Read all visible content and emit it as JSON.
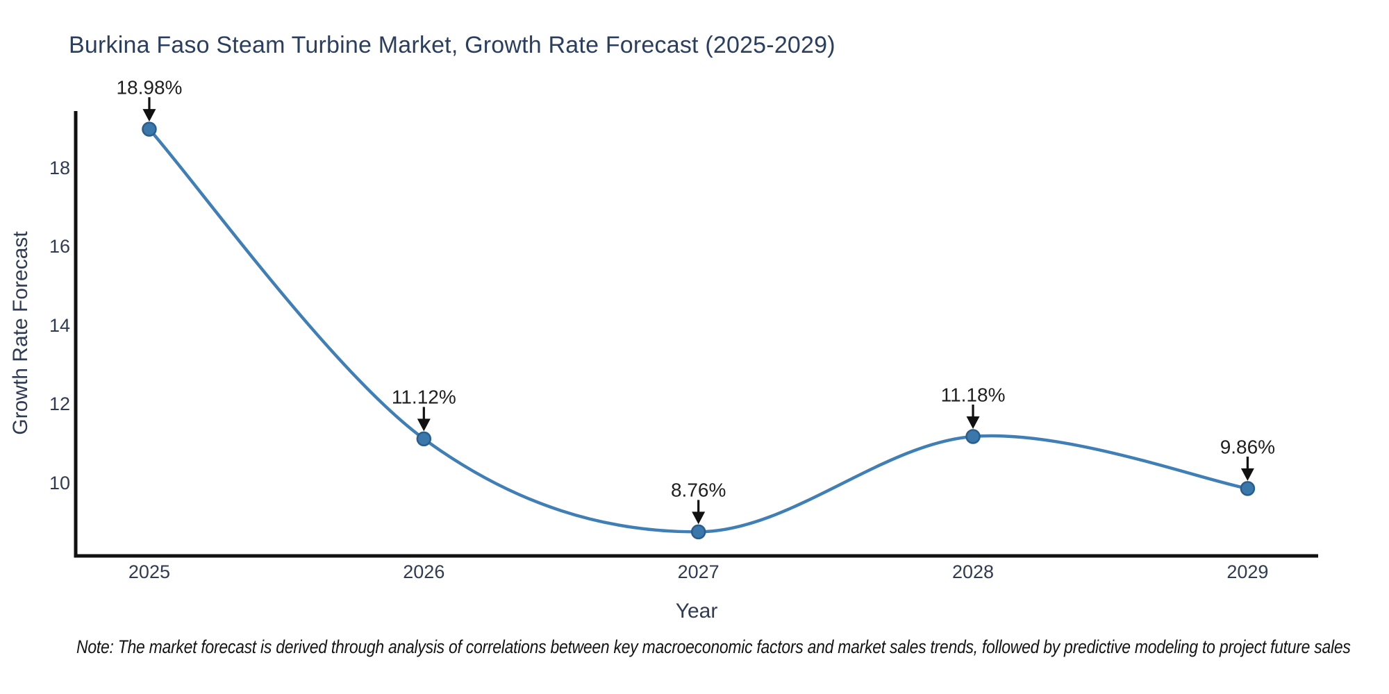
{
  "title": "Burkina Faso Steam Turbine Market, Growth Rate Forecast (2025-2029)",
  "note": "Note: The market forecast is derived through analysis of correlations between key macroeconomic factors and market sales trends, followed by predictive modeling to project future sales",
  "chart_data": {
    "type": "line",
    "title": "Burkina Faso Steam Turbine Market, Growth Rate Forecast (2025-2029)",
    "xlabel": "Year",
    "ylabel": "Growth Rate Forecast",
    "x": [
      2025,
      2026,
      2027,
      2028,
      2029
    ],
    "series": [
      {
        "name": "Growth Rate Forecast",
        "values": [
          18.98,
          11.12,
          8.76,
          11.18,
          9.86
        ]
      }
    ],
    "point_labels": [
      "18.98%",
      "11.12%",
      "8.76%",
      "11.18%",
      "9.86%"
    ],
    "yticks": [
      10,
      12,
      14,
      16,
      18
    ],
    "xticks": [
      2025,
      2026,
      2027,
      2028,
      2029
    ],
    "xlim": [
      2024.732,
      2029.257
    ],
    "ylim": [
      8.15,
      19.44
    ],
    "line_shape": "spline",
    "grid": false,
    "legend": "none",
    "annotation_arrows": true,
    "colors": {
      "line": "#3f7fb5",
      "marker_fill": "#3a77ab",
      "marker_edge": "#2a5d8a",
      "axis": "#111111",
      "arrow": "#111111",
      "heading_text": "#2a3f5f",
      "tick_text": "#2f3b52",
      "annotation_text": "#1f1f1f"
    }
  }
}
